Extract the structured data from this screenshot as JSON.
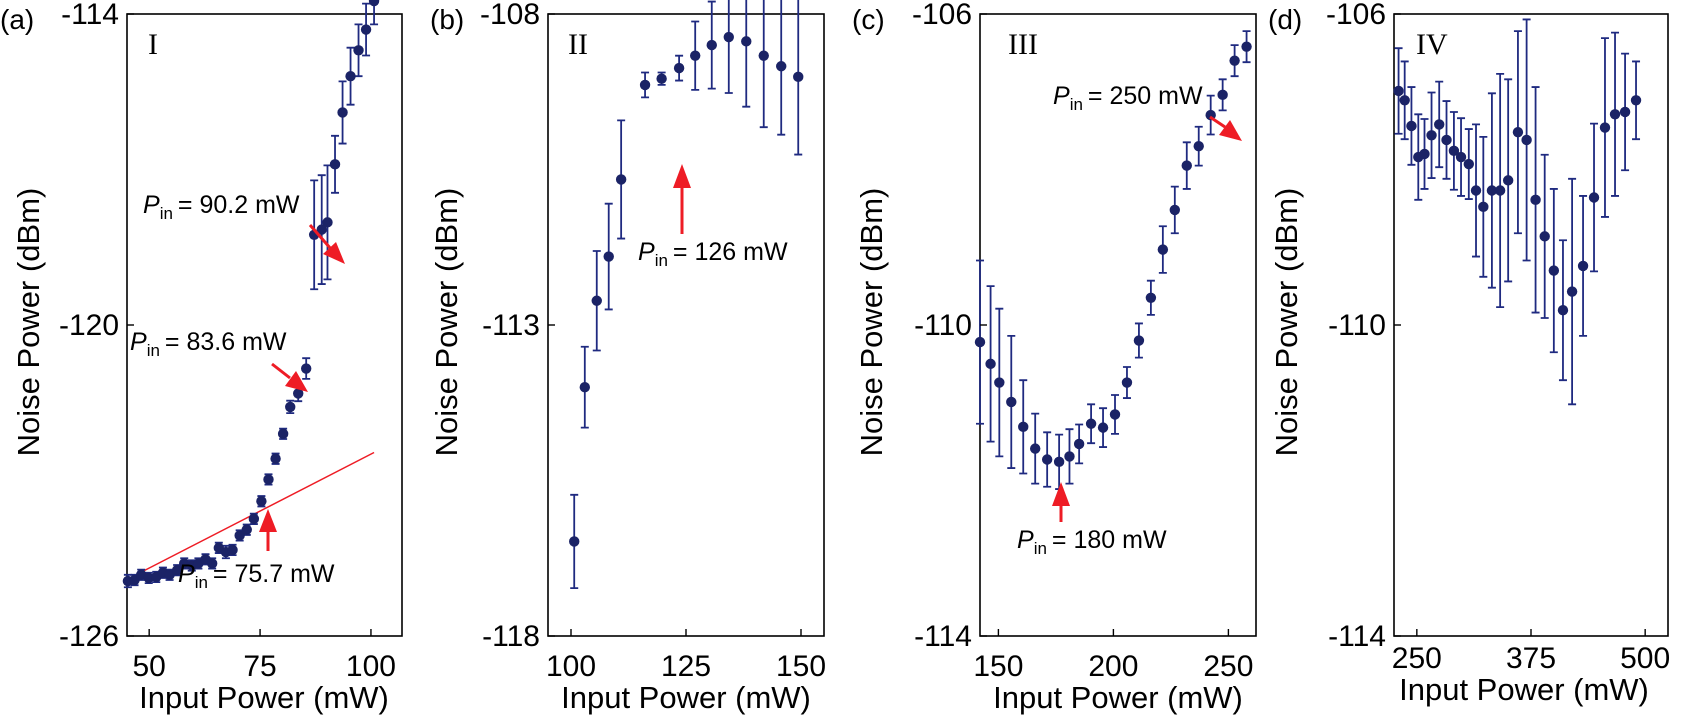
{
  "chart_data": [
    {
      "type": "scatter",
      "panel": "(a)",
      "roman": "I",
      "xlabel": "Input Power (mW)",
      "ylabel": "Noise Power (dBm)",
      "xlim": [
        45,
        107
      ],
      "ylim": [
        -126,
        -114
      ],
      "xticks": [
        50,
        75,
        100
      ],
      "xtick_labels": [
        "50",
        "75",
        "100"
      ],
      "yticks": [
        -126,
        -120,
        -114
      ],
      "ytick_labels": [
        "-126",
        "-120",
        "-114"
      ],
      "colors": {
        "points": "#1b2366",
        "errorbars": "#1f2a80",
        "annotation": "#ee1c25"
      },
      "series": [
        {
          "name": "Noise power",
          "x": [
            45.2,
            46.7,
            48.2,
            49.9,
            51.6,
            53.1,
            54.6,
            56.3,
            57.9,
            59.6,
            61.1,
            62.7,
            64.2,
            65.7,
            67.3,
            68.8,
            70.4,
            72.0,
            73.6,
            75.3,
            76.9,
            78.5,
            80.2,
            81.8,
            83.6,
            85.4,
            87.2,
            88.9,
            90.2,
            91.9,
            93.6,
            95.4,
            97.2,
            98.9,
            100.7
          ],
          "y": [
            -124.94,
            -124.92,
            -124.82,
            -124.88,
            -124.86,
            -124.78,
            -124.82,
            -124.73,
            -124.6,
            -124.64,
            -124.6,
            -124.52,
            -124.6,
            -124.3,
            -124.38,
            -124.34,
            -124.06,
            -123.95,
            -123.74,
            -123.4,
            -122.98,
            -122.58,
            -122.1,
            -121.58,
            -121.32,
            -120.84,
            -118.26,
            -118.16,
            -118.02,
            -116.9,
            -115.9,
            -115.2,
            -114.7,
            -114.3,
            -113.75
          ],
          "err": [
            0.12,
            0.1,
            0.1,
            0.1,
            0.1,
            0.1,
            0.1,
            0.1,
            0.1,
            0.1,
            0.1,
            0.1,
            0.1,
            0.1,
            0.12,
            0.1,
            0.1,
            0.1,
            0.1,
            0.1,
            0.1,
            0.1,
            0.1,
            0.12,
            0.15,
            0.2,
            1.05,
            1.05,
            1.1,
            0.55,
            0.6,
            0.55,
            0.5,
            0.5,
            0.45
          ]
        }
      ],
      "fit_line": {
        "x": [
          45.2,
          100.7
        ],
        "y": [
          -124.9,
          -122.46
        ]
      },
      "annotations": [
        {
          "label": "P",
          "sub": "in",
          "text": "= 90.2 mW",
          "x": 90.2
        },
        {
          "label": "P",
          "sub": "in",
          "text": "= 83.6 mW",
          "x": 83.6
        },
        {
          "label": "P",
          "sub": "in",
          "text": "= 75.7 mW",
          "x": 75.7
        }
      ]
    },
    {
      "type": "scatter",
      "panel": "(b)",
      "roman": "II",
      "xlabel": "Input Power (mW)",
      "ylabel": "Noise Power (dBm)",
      "xlim": [
        95,
        155
      ],
      "ylim": [
        -118,
        -108
      ],
      "xticks": [
        100,
        125,
        150
      ],
      "xtick_labels": [
        "100",
        "125",
        "150"
      ],
      "yticks": [
        -118,
        -113,
        -108
      ],
      "ytick_labels": [
        "-118",
        "-113",
        "-108"
      ],
      "colors": {
        "points": "#1b2366",
        "errorbars": "#1f2a80",
        "annotation": "#ee1c25"
      },
      "series": [
        {
          "name": "Noise power",
          "x": [
            100.7,
            103.0,
            105.6,
            108.2,
            110.9,
            116.1,
            119.7,
            123.5,
            127.0,
            130.6,
            134.3,
            138.1,
            141.9,
            145.7,
            149.4
          ],
          "y": [
            -116.48,
            -114.0,
            -112.61,
            -111.9,
            -110.66,
            -109.14,
            -109.04,
            -108.87,
            -108.67,
            -108.5,
            -108.37,
            -108.44,
            -108.67,
            -108.84,
            -109.01
          ],
          "err": [
            0.75,
            0.65,
            0.8,
            0.85,
            0.95,
            0.2,
            0.1,
            0.2,
            0.55,
            0.7,
            0.9,
            1.05,
            1.15,
            1.1,
            1.25
          ]
        }
      ],
      "annotations": [
        {
          "label": "P",
          "sub": "in",
          "text": "= 126 mW",
          "x": 123.5
        }
      ]
    },
    {
      "type": "scatter",
      "panel": "(c)",
      "roman": "III",
      "xlabel": "Input Power (mW)",
      "ylabel": "Noise Power (dBm)",
      "xlim": [
        142,
        262
      ],
      "ylim": [
        -114,
        -106
      ],
      "xticks": [
        150,
        200,
        250
      ],
      "xtick_labels": [
        "150",
        "200",
        "250"
      ],
      "yticks": [
        -114,
        -110,
        -106
      ],
      "ytick_labels": [
        "-114",
        "-110",
        "-106"
      ],
      "colors": {
        "points": "#1b2366",
        "errorbars": "#1f2a80",
        "annotation": "#ee1c25"
      },
      "series": [
        {
          "name": "Noise power",
          "x": [
            142,
            146.6,
            150.4,
            155.6,
            160.8,
            166,
            171.2,
            176.4,
            180.9,
            185.1,
            190.3,
            195.5,
            200.7,
            205.9,
            211.1,
            216.3,
            221.5,
            226.7,
            231.9,
            237.1,
            242.3,
            247.5,
            252.7,
            257.9
          ],
          "y": [
            -110.22,
            -110.5,
            -110.74,
            -110.99,
            -111.31,
            -111.59,
            -111.73,
            -111.76,
            -111.69,
            -111.53,
            -111.27,
            -111.32,
            -111.15,
            -110.74,
            -110.2,
            -109.65,
            -109.03,
            -108.52,
            -107.95,
            -107.7,
            -107.3,
            -107.04,
            -106.6,
            -106.42
          ],
          "err": [
            1.05,
            1.0,
            0.95,
            0.85,
            0.6,
            0.45,
            0.35,
            0.35,
            0.35,
            0.25,
            0.25,
            0.25,
            0.25,
            0.2,
            0.22,
            0.22,
            0.3,
            0.3,
            0.3,
            0.25,
            0.25,
            0.2,
            0.2,
            0.2
          ]
        }
      ],
      "annotations": [
        {
          "label": "P",
          "sub": "in",
          "text": "= 250 mW",
          "x": 257.9
        },
        {
          "label": "P",
          "sub": "in",
          "text": "= 180 mW",
          "x": 176.4
        }
      ]
    },
    {
      "type": "scatter",
      "panel": "(d)",
      "roman": "IV",
      "xlabel": "Input Power (mW)",
      "ylabel": "Noise Power (dBm)",
      "xlim": [
        225,
        525
      ],
      "ylim": [
        -114,
        -106
      ],
      "xticks": [
        250,
        375,
        500
      ],
      "xtick_labels": [
        "250",
        "375",
        "500"
      ],
      "yticks": [
        -114,
        -110,
        -106
      ],
      "ytick_labels": [
        "-114",
        "-110",
        "-106"
      ],
      "colors": {
        "points": "#1b2366",
        "errorbars": "#1f2a80",
        "annotation": "#ee1c25"
      },
      "series": [
        {
          "name": "Noise power",
          "x": [
            230.0,
            236.7,
            244.1,
            251.6,
            258.4,
            266.1,
            274.5,
            282.5,
            290.6,
            298.4,
            306.9,
            314.8,
            322.8,
            332.2,
            341.2,
            350.0,
            360.7,
            370.2,
            380.0,
            390.0,
            400.0,
            410.0,
            420.0,
            432.0,
            444.0,
            456.0,
            467.0,
            478.0,
            490.0
          ],
          "y": [
            -106.99,
            -107.11,
            -107.44,
            -107.84,
            -107.8,
            -107.56,
            -107.42,
            -107.62,
            -107.76,
            -107.84,
            -107.93,
            -108.27,
            -108.48,
            -108.27,
            -108.27,
            -108.14,
            -107.52,
            -107.62,
            -108.39,
            -108.86,
            -109.3,
            -109.81,
            -109.57,
            -109.24,
            -108.36,
            -107.46,
            -107.29,
            -107.26,
            -107.11
          ],
          "err": [
            0.55,
            0.5,
            0.5,
            0.55,
            0.45,
            0.55,
            0.55,
            0.5,
            0.5,
            0.5,
            0.45,
            0.85,
            0.9,
            1.25,
            1.5,
            1.3,
            1.3,
            1.55,
            1.45,
            1.05,
            1.05,
            0.9,
            1.45,
            0.9,
            0.95,
            1.15,
            1.05,
            0.75,
            0.5
          ]
        }
      ],
      "annotations": []
    }
  ]
}
